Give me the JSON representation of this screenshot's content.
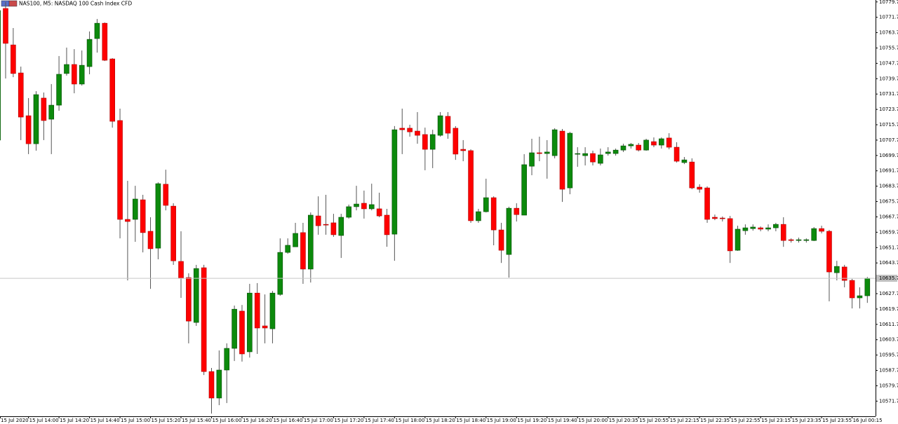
{
  "chart_data": {
    "type": "candlestick",
    "title": "NAS100, M5: NASDAQ 100 Cash Index CFD",
    "up_color": "#0c8a0c",
    "down_color": "#ff0000",
    "categories": [
      "15 Jul 2020",
      null,
      null,
      null,
      "15 Jul 14:00",
      null,
      null,
      null,
      "15 Jul 14:20",
      null,
      null,
      null,
      "15 Jul 14:40",
      null,
      null,
      null,
      "15 Jul 15:00",
      null,
      null,
      null,
      "15 Jul 15:20",
      null,
      null,
      null,
      "15 Jul 15:40",
      null,
      null,
      null,
      "15 Jul 16:00",
      null,
      null,
      null,
      "15 Jul 16:20",
      null,
      null,
      null,
      "15 Jul 16:40",
      null,
      null,
      null,
      "15 Jul 17:00",
      null,
      null,
      null,
      "15 Jul 17:20",
      null,
      null,
      null,
      "15 Jul 17:40",
      null,
      null,
      null,
      "15 Jul 18:00",
      null,
      null,
      null,
      "15 Jul 18:20",
      null,
      null,
      null,
      "15 Jul 18:40",
      null,
      null,
      null,
      "15 Jul 19:00",
      null,
      null,
      null,
      "15 Jul 19:20",
      null,
      null,
      null,
      "15 Jul 19:40",
      null,
      null,
      null,
      "15 Jul 20:00",
      null,
      null,
      null,
      "15 Jul 20:35",
      null,
      null,
      null,
      "15 Jul 20:55",
      null,
      null,
      null,
      "15 Jul 22:15",
      null,
      null,
      null,
      "15 Jul 22:35",
      null,
      null,
      null,
      "15 Jul 22:55",
      null,
      null,
      null,
      "15 Jul 23:15",
      null,
      null,
      null,
      "15 Jul 23:35",
      null,
      null,
      null,
      "15 Jul 23:55",
      null,
      null,
      null,
      "16 Jul 00:15",
      null,
      null
    ],
    "open": [
      10707.7,
      10776.3,
      10757.3,
      10742.7,
      10720.4,
      10705.8,
      10729.6,
      10718.6,
      10725.9,
      10742.4,
      10747.1,
      10736.9,
      10746.0,
      10760.6,
      10768.6,
      10750.0,
      10717.9,
      10666.4,
      10666.4,
      10676.6,
      10660.2,
      10651.4,
      10684.7,
      10673.3,
      10644.5,
      10636.1,
      10612.7,
      10641.2,
      10587.1,
      10573.3,
      10587.9,
      10599.2,
      10618.6,
      10597.4,
      10628.0,
      10610.9,
      10609.4,
      10627.3,
      10649.2,
      10652.1,
      10659.5,
      10640.5,
      10668.2,
      10663.8,
      10664.6,
      10658.0,
      10667.5,
      10673.0,
      10674.8,
      10671.9,
      10671.9,
      10668.6,
      10658.7,
      10713.9,
      10713.9,
      10712.4,
      10710.6,
      10702.9,
      10710.2,
      10720.1,
      10713.9,
      10702.9,
      10702.2,
      10665.7,
      10670.4,
      10677.7,
      10660.9,
      10648.1,
      10672.2,
      10668.6,
      10694.1,
      10701.1,
      10700.7,
      10699.6,
      10712.4,
      10682.8,
      10700.4,
      10699.6,
      10700.7,
      10695.6,
      10700.7,
      10700.7,
      10702.5,
      10704.7,
      10705.1,
      10702.5,
      10706.9,
      10705.1,
      10708.8,
      10704.0,
      10696.0,
      10696.3,
      10683.2,
      10682.8,
      10667.5,
      10667.1,
      10666.8,
      10650.3,
      10660.5,
      10661.6,
      10662.0,
      10661.3,
      10662.0,
      10663.8,
      10655.8,
      10655.4,
      10655.4,
      10655.4,
      10661.6,
      10660.2,
      10638.6,
      10641.6,
      10634.6,
      10625.5,
      10626.6
    ],
    "high": [
      10778.9,
      10779.6,
      10766.1,
      10746.0,
      10729.6,
      10733.2,
      10732.5,
      10736.9,
      10751.5,
      10755.9,
      10755.1,
      10754.4,
      10764.3,
      10770.8,
      10769.0,
      10750.4,
      10724.1,
      10686.5,
      10683.9,
      10679.2,
      10667.5,
      10685.7,
      10692.3,
      10674.8,
      10660.2,
      10638.3,
      10642.7,
      10642.7,
      10589.0,
      10598.1,
      10601.8,
      10621.5,
      10621.8,
      10632.8,
      10633.2,
      10627.3,
      10629.1,
      10656.5,
      10656.5,
      10664.6,
      10664.6,
      10670.0,
      10678.4,
      10679.2,
      10669.3,
      10669.3,
      10674.1,
      10683.9,
      10681.4,
      10685.0,
      10680.3,
      10671.9,
      10715.0,
      10724.1,
      10715.7,
      10722.3,
      10714.2,
      10713.1,
      10722.3,
      10722.3,
      10715.0,
      10707.7,
      10702.9,
      10671.9,
      10687.6,
      10678.4,
      10664.6,
      10673.0,
      10674.8,
      10700.4,
      10708.4,
      10709.5,
      10707.7,
      10713.9,
      10713.5,
      10712.0,
      10704.0,
      10704.0,
      10702.2,
      10703.3,
      10704.0,
      10703.3,
      10705.8,
      10706.2,
      10706.2,
      10708.4,
      10709.1,
      10709.1,
      10711.3,
      10706.6,
      10698.9,
      10698.2,
      10684.7,
      10683.6,
      10668.9,
      10667.9,
      10668.2,
      10663.1,
      10663.8,
      10663.8,
      10662.7,
      10663.8,
      10664.6,
      10667.5,
      10656.5,
      10656.9,
      10656.5,
      10662.4,
      10663.1,
      10660.9,
      10644.8,
      10642.7,
      10635.4,
      10631.0,
      10636.4
    ],
    "low": [
      10704.0,
      10739.8,
      10740.5,
      10707.7,
      10700.4,
      10702.2,
      10707.7,
      10700.4,
      10723.0,
      10741.3,
      10732.1,
      10736.1,
      10742.0,
      10753.3,
      10748.9,
      10714.2,
      10656.5,
      10634.6,
      10654.7,
      10649.2,
      10630.2,
      10645.6,
      10671.1,
      10642.7,
      10625.5,
      10601.8,
      10610.9,
      10585.3,
      10565.2,
      10569.6,
      10570.7,
      10592.6,
      10592.3,
      10594.4,
      10596.3,
      10601.8,
      10601.8,
      10626.6,
      10648.5,
      10652.1,
      10632.8,
      10633.5,
      10658.4,
      10658.4,
      10657.3,
      10646.3,
      10666.8,
      10671.1,
      10666.8,
      10671.1,
      10667.5,
      10652.1,
      10644.8,
      10700.4,
      10709.5,
      10705.8,
      10692.0,
      10693.1,
      10709.5,
      10708.4,
      10697.4,
      10696.7,
      10664.6,
      10664.6,
      10670.0,
      10652.9,
      10643.7,
      10636.1,
      10665.3,
      10668.6,
      10689.4,
      10696.7,
      10687.6,
      10698.2,
      10675.5,
      10679.5,
      10693.8,
      10694.5,
      10694.5,
      10694.5,
      10699.6,
      10699.6,
      10701.5,
      10703.3,
      10701.8,
      10702.2,
      10704.0,
      10703.3,
      10702.9,
      10696.0,
      10695.2,
      10682.1,
      10680.3,
      10664.6,
      10666.0,
      10665.3,
      10643.7,
      10650.0,
      10658.4,
      10660.5,
      10660.2,
      10660.2,
      10660.2,
      10652.1,
      10654.3,
      10654.3,
      10654.3,
      10655.1,
      10659.1,
      10623.7,
      10634.6,
      10631.0,
      10620.0,
      10620.0,
      10622.9
    ],
    "close": [
      10775.2,
      10758.1,
      10742.4,
      10719.7,
      10705.8,
      10731.4,
      10717.9,
      10725.9,
      10742.0,
      10747.1,
      10736.9,
      10746.7,
      10760.2,
      10768.6,
      10749.3,
      10717.5,
      10666.4,
      10665.3,
      10677.0,
      10659.5,
      10651.1,
      10685.0,
      10673.7,
      10644.8,
      10635.7,
      10613.4,
      10640.8,
      10587.1,
      10573.3,
      10587.9,
      10599.2,
      10619.6,
      10596.3,
      10628.0,
      10609.8,
      10609.8,
      10628.0,
      10649.2,
      10652.9,
      10659.1,
      10640.5,
      10668.6,
      10663.1,
      10663.5,
      10658.4,
      10667.5,
      10673.0,
      10674.4,
      10671.9,
      10674.1,
      10668.2,
      10658.4,
      10713.1,
      10713.1,
      10712.0,
      10710.2,
      10702.9,
      10710.6,
      10720.4,
      10711.3,
      10700.4,
      10702.2,
      10665.7,
      10670.4,
      10677.7,
      10660.9,
      10650.3,
      10672.2,
      10668.9,
      10694.9,
      10701.1,
      10700.7,
      10701.5,
      10713.1,
      10682.1,
      10711.3,
      10700.7,
      10700.7,
      10696.3,
      10700.0,
      10701.5,
      10702.5,
      10704.7,
      10705.5,
      10702.5,
      10707.7,
      10705.1,
      10708.4,
      10704.0,
      10696.7,
      10697.4,
      10682.8,
      10682.1,
      10666.4,
      10666.8,
      10666.8,
      10650.0,
      10661.3,
      10662.0,
      10662.4,
      10661.3,
      10662.0,
      10663.8,
      10655.4,
      10655.4,
      10655.8,
      10655.8,
      10661.6,
      10660.2,
      10639.0,
      10641.9,
      10634.6,
      10625.5,
      10626.6,
      10635.7
    ],
    "current_price": 10635.7,
    "ylim": [
      10563.8,
      10780.7
    ],
    "yticks": [
      10779.7,
      10771.7,
      10763.7,
      10755.7,
      10747.7,
      10739.7,
      10731.7,
      10723.7,
      10715.7,
      10707.7,
      10699.7,
      10691.7,
      10683.7,
      10675.7,
      10667.7,
      10659.7,
      10651.7,
      10643.7,
      10627.7,
      10619.7,
      10611.7,
      10603.7,
      10595.7,
      10587.7,
      10579.7,
      10571.7
    ]
  }
}
